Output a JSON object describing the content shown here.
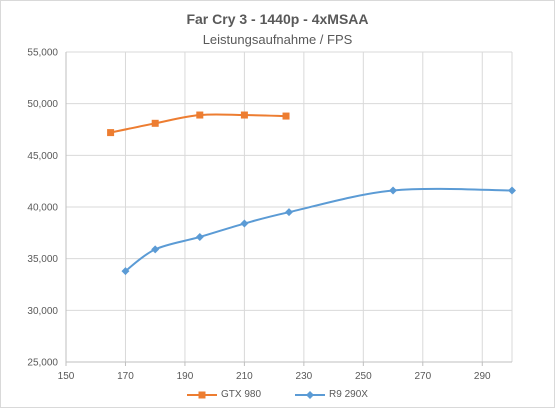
{
  "chart_data": {
    "type": "line",
    "title": "Far Cry 3 - 1440p - 4xMSAA",
    "subtitle": "Leistungsaufnahme / FPS",
    "xlabel": "",
    "ylabel": "",
    "xlim": [
      150,
      300
    ],
    "ylim": [
      25000,
      55000
    ],
    "x_ticks": [
      "150",
      "170",
      "190",
      "210",
      "230",
      "250",
      "270",
      "290"
    ],
    "y_ticks": [
      "25,000",
      "30,000",
      "35,000",
      "40,000",
      "45,000",
      "50,000",
      "55,000"
    ],
    "grid": true,
    "legend_position": "bottom",
    "series": [
      {
        "name": "GTX 980",
        "color": "#ed7d31",
        "marker": "square",
        "points": [
          {
            "x": 165,
            "y": 47200
          },
          {
            "x": 180,
            "y": 48100
          },
          {
            "x": 195,
            "y": 48900
          },
          {
            "x": 210,
            "y": 48900
          },
          {
            "x": 224,
            "y": 48800
          }
        ]
      },
      {
        "name": "R9 290X",
        "color": "#5b9bd5",
        "marker": "diamond",
        "points": [
          {
            "x": 170,
            "y": 33800
          },
          {
            "x": 180,
            "y": 35900
          },
          {
            "x": 195,
            "y": 37100
          },
          {
            "x": 210,
            "y": 38400
          },
          {
            "x": 225,
            "y": 39500
          },
          {
            "x": 260,
            "y": 41600
          },
          {
            "x": 300,
            "y": 41600
          }
        ]
      }
    ]
  }
}
